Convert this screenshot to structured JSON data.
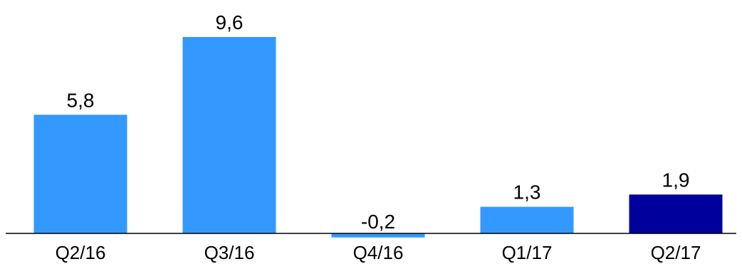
{
  "chart_data": {
    "type": "bar",
    "categories": [
      "Q2/16",
      "Q3/16",
      "Q4/16",
      "Q1/17",
      "Q2/17"
    ],
    "values": [
      5.8,
      9.6,
      -0.2,
      1.3,
      1.9
    ],
    "value_labels": [
      "5,8",
      "9,6",
      "-0,2",
      "1,3",
      "1,9"
    ],
    "bar_colors": [
      "#3399ff",
      "#3399ff",
      "#3399ff",
      "#3399ff",
      "#00009c"
    ],
    "title": "",
    "xlabel": "",
    "ylabel": "",
    "ylim": [
      -0.5,
      10
    ],
    "grid": false,
    "legend": "none"
  }
}
